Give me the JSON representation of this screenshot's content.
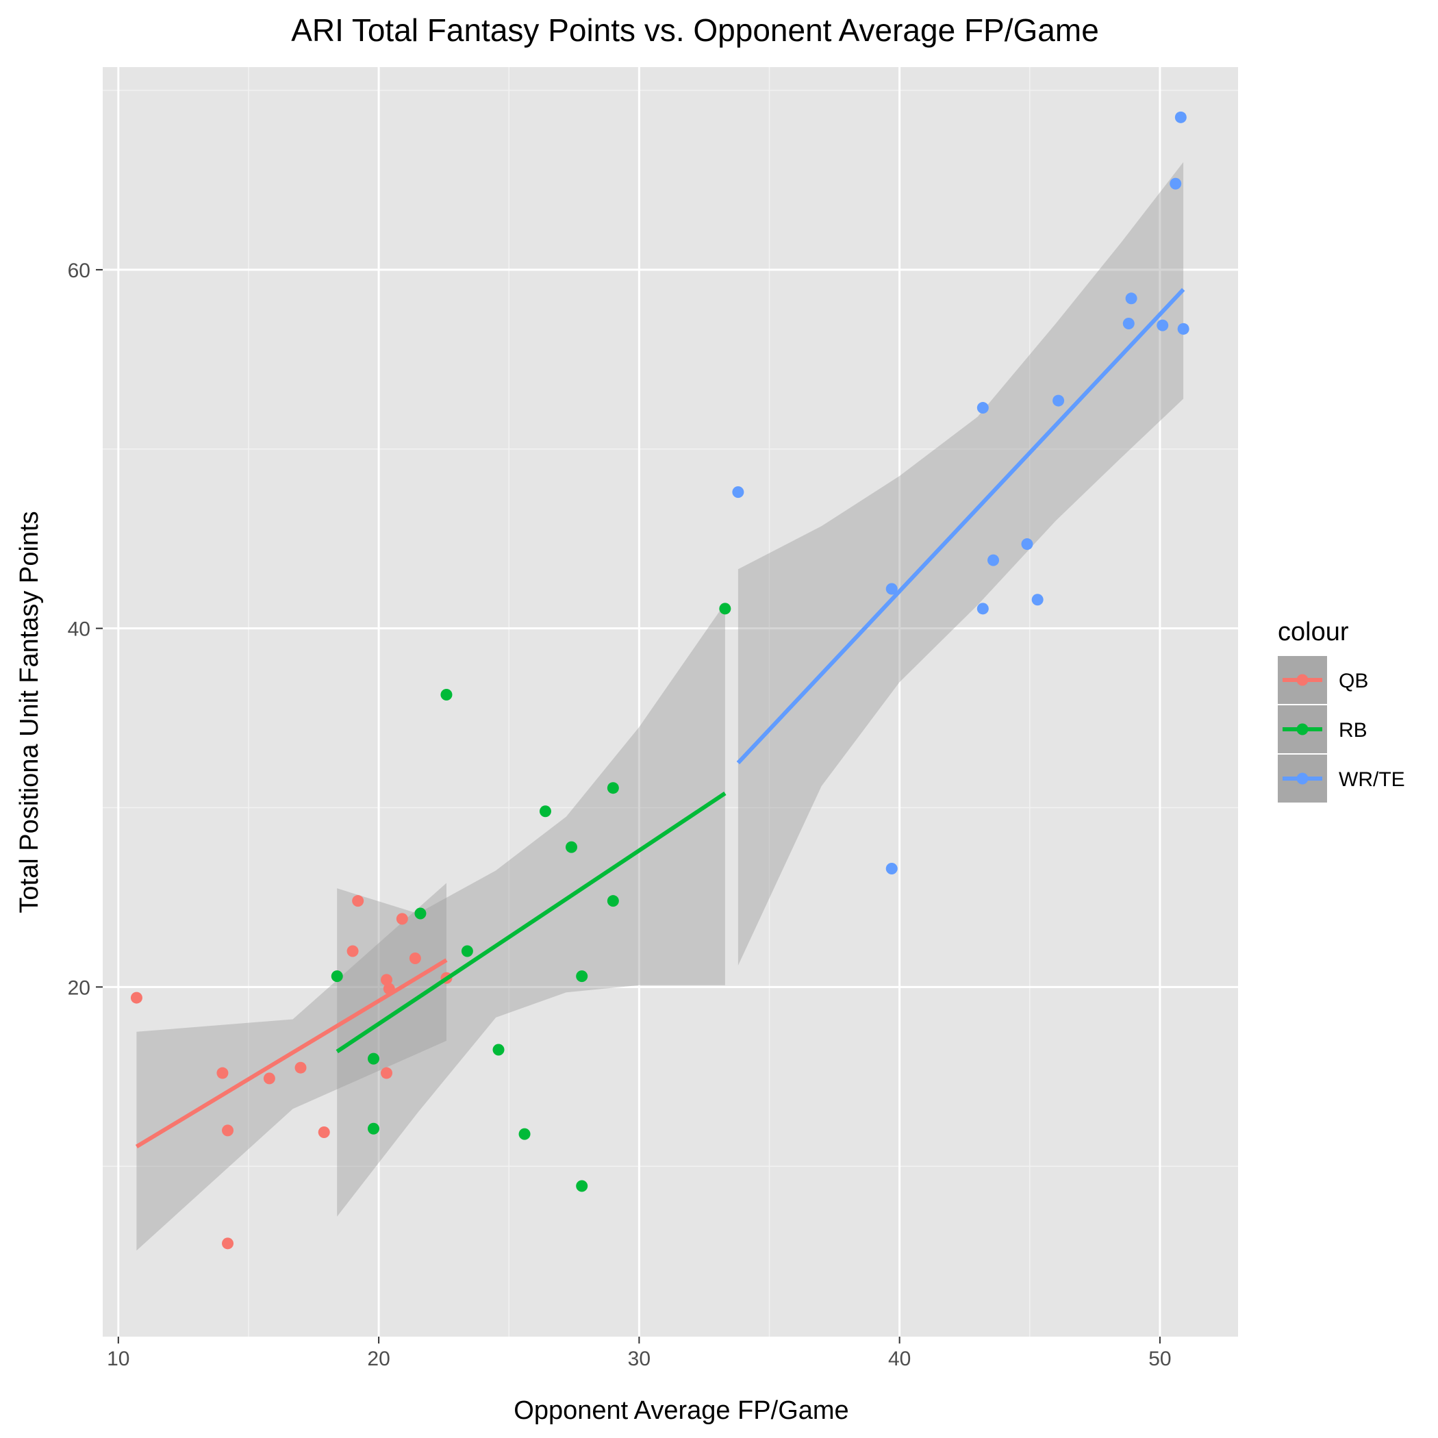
{
  "chart_data": {
    "type": "scatter",
    "title": "ARI Total Fantasy Points vs. Opponent Average FP/Game",
    "xlabel": "Opponent Average FP/Game",
    "ylabel": "Total Positiona Unit Fantasy Points",
    "xlim": [
      9.4,
      53
    ],
    "ylim": [
      0.5,
      71.3
    ],
    "x_ticks": [
      10,
      20,
      30,
      40,
      50
    ],
    "y_ticks": [
      20,
      40,
      60
    ],
    "grid": true,
    "legend": {
      "title": "colour",
      "position": "right"
    },
    "smoothing": "linear fit with confidence band",
    "series": [
      {
        "name": "QB",
        "color": "#F8766D",
        "points": [
          [
            10.7,
            19.4
          ],
          [
            14.0,
            15.2
          ],
          [
            14.2,
            12.0
          ],
          [
            14.2,
            5.7
          ],
          [
            15.8,
            14.9
          ],
          [
            17.0,
            15.5
          ],
          [
            17.9,
            11.9
          ],
          [
            19.0,
            22.0
          ],
          [
            19.2,
            24.8
          ],
          [
            20.3,
            20.4
          ],
          [
            20.3,
            15.2
          ],
          [
            20.4,
            19.9
          ],
          [
            20.9,
            23.8
          ],
          [
            21.4,
            21.6
          ],
          [
            22.6,
            20.5
          ]
        ],
        "fit": {
          "x": [
            10.7,
            22.6
          ],
          "y": [
            11.1,
            21.5
          ]
        },
        "band": {
          "x": [
            10.7,
            16.7,
            22.6
          ],
          "lower": [
            5.3,
            13.2,
            17.0
          ],
          "upper": [
            17.5,
            18.2,
            25.8
          ]
        }
      },
      {
        "name": "RB",
        "color": "#00BA38",
        "points": [
          [
            18.4,
            20.6
          ],
          [
            19.8,
            16.0
          ],
          [
            19.8,
            12.1
          ],
          [
            21.6,
            24.1
          ],
          [
            22.6,
            36.3
          ],
          [
            23.4,
            22.0
          ],
          [
            24.6,
            16.5
          ],
          [
            25.6,
            11.8
          ],
          [
            26.4,
            29.8
          ],
          [
            27.4,
            27.8
          ],
          [
            27.8,
            20.6
          ],
          [
            27.8,
            8.9
          ],
          [
            29.0,
            31.1
          ],
          [
            29.0,
            24.8
          ],
          [
            33.3,
            41.1
          ]
        ],
        "fit": {
          "x": [
            18.4,
            33.3
          ],
          "y": [
            16.4,
            30.8
          ]
        },
        "band": {
          "x": [
            18.4,
            21.5,
            24.5,
            27.2,
            30.0,
            33.3
          ],
          "lower": [
            7.2,
            13.0,
            18.3,
            19.7,
            20.1,
            20.1
          ],
          "upper": [
            25.5,
            24.1,
            26.5,
            29.5,
            34.5,
            41.4
          ]
        }
      },
      {
        "name": "WR/TE",
        "color": "#619CFF",
        "points": [
          [
            33.8,
            47.6
          ],
          [
            39.7,
            42.2
          ],
          [
            39.7,
            26.6
          ],
          [
            43.2,
            52.3
          ],
          [
            43.2,
            41.1
          ],
          [
            43.6,
            43.8
          ],
          [
            44.9,
            44.7
          ],
          [
            45.3,
            41.6
          ],
          [
            46.1,
            52.7
          ],
          [
            48.8,
            57.0
          ],
          [
            48.9,
            58.4
          ],
          [
            50.1,
            56.9
          ],
          [
            50.6,
            64.8
          ],
          [
            50.8,
            68.5
          ],
          [
            50.9,
            56.7
          ]
        ],
        "fit": {
          "x": [
            33.8,
            50.9
          ],
          "y": [
            32.5,
            58.9
          ]
        },
        "band": {
          "x": [
            33.8,
            37.0,
            40.0,
            43.0,
            46.0,
            48.5,
            50.9
          ],
          "lower": [
            21.2,
            31.2,
            37.0,
            41.3,
            46.0,
            49.5,
            52.8
          ],
          "upper": [
            43.3,
            45.7,
            48.5,
            51.8,
            57.0,
            61.5,
            66.0
          ]
        }
      }
    ]
  }
}
